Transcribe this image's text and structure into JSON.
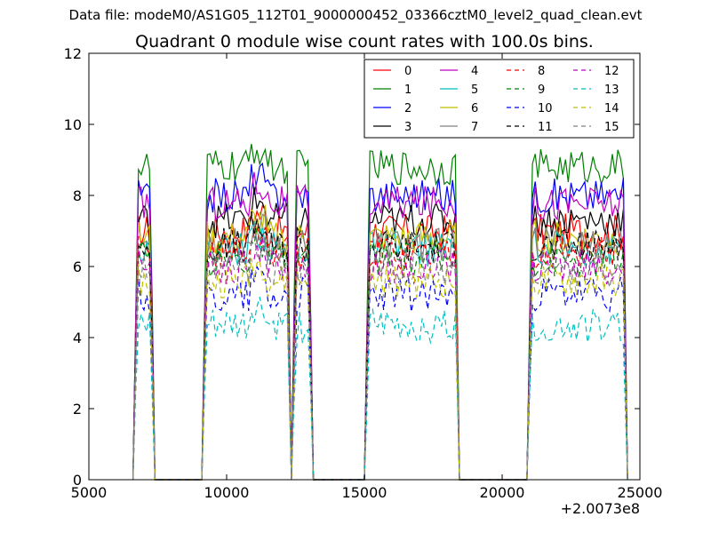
{
  "header_text": "Data file: modeM0/AS1G05_112T01_9000000452_03366cztM0_level2_quad_clean.evt",
  "title": "Quadrant 0 module wise count rates with 100.0s bins.",
  "x_offset_label": "+2.0073e8",
  "chart_data": {
    "type": "line",
    "title": "Quadrant 0 module wise count rates with 100.0s bins.",
    "xlabel": "",
    "ylabel": "",
    "x_offset": 200730000,
    "xlim": [
      5000,
      25000
    ],
    "ylim": [
      0,
      12
    ],
    "xticks": [
      5000,
      10000,
      15000,
      20000,
      25000
    ],
    "yticks": [
      0,
      2,
      4,
      6,
      8,
      10,
      12
    ],
    "grid": false,
    "legend_position": "top-right",
    "segments": [
      [
        6700,
        7300
      ],
      [
        9200,
        12250
      ],
      [
        12450,
        13050
      ],
      [
        15100,
        18350
      ],
      [
        21000,
        24450
      ]
    ],
    "series": [
      {
        "name": "0",
        "color": "#ff0000",
        "style": "solid",
        "level": 7.0
      },
      {
        "name": "1",
        "color": "#008000",
        "style": "solid",
        "level": 8.8
      },
      {
        "name": "2",
        "color": "#0000ff",
        "style": "solid",
        "level": 8.0
      },
      {
        "name": "3",
        "color": "#000000",
        "style": "solid",
        "level": 7.3
      },
      {
        "name": "4",
        "color": "#bf00bf",
        "style": "solid",
        "level": 7.8
      },
      {
        "name": "5",
        "color": "#00bfbf",
        "style": "solid",
        "level": 6.5
      },
      {
        "name": "6",
        "color": "#bfbf00",
        "style": "solid",
        "level": 6.8
      },
      {
        "name": "7",
        "color": "#808080",
        "style": "solid",
        "level": 6.6
      },
      {
        "name": "8",
        "color": "#ff0000",
        "style": "dashed",
        "level": 6.4
      },
      {
        "name": "9",
        "color": "#008000",
        "style": "dashed",
        "level": 6.2
      },
      {
        "name": "10",
        "color": "#0000ff",
        "style": "dashed",
        "level": 5.2
      },
      {
        "name": "11",
        "color": "#000000",
        "style": "dashed",
        "level": 6.6
      },
      {
        "name": "12",
        "color": "#bf00bf",
        "style": "dashed",
        "level": 6.0
      },
      {
        "name": "13",
        "color": "#00bfbf",
        "style": "dashed",
        "level": 4.3
      },
      {
        "name": "14",
        "color": "#bfbf00",
        "style": "dashed",
        "level": 5.6
      },
      {
        "name": "15",
        "color": "#808080",
        "style": "dashed",
        "level": 5.9
      }
    ]
  }
}
